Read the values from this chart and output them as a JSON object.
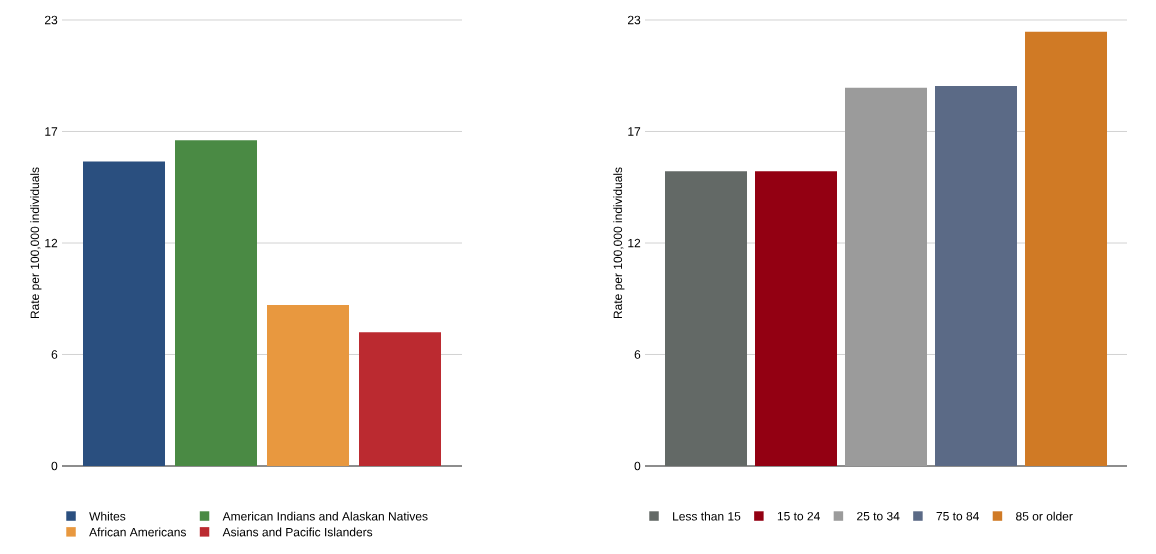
{
  "chart_data": [
    {
      "type": "bar",
      "ylabel": "Rate per 100,000 individuals",
      "categories": [
        null
      ],
      "series": [
        {
          "name": "Whites",
          "color": "#2a4f7f",
          "values": [
            15.7
          ]
        },
        {
          "name": "American Indians and Alaskan Natives",
          "color": "#4a8a44",
          "values": [
            16.8
          ]
        },
        {
          "name": "African Americans",
          "color": "#e8983f",
          "values": [
            8.3
          ]
        },
        {
          "name": "Asians and Pacific Islanders",
          "color": "#bb2a30",
          "values": [
            6.9
          ]
        }
      ],
      "ylim": [
        0,
        23
      ],
      "yticks": [
        0,
        {
          "value": 5.75,
          "label": "6"
        },
        {
          "value": 11.5,
          "label": "12"
        },
        {
          "value": 17.25,
          "label": "17"
        },
        23
      ],
      "grid": "y",
      "legend": "bottom",
      "tick_labels": "y"
    },
    {
      "type": "bar",
      "ylabel": "Rate per 100,000 individuals",
      "categories": [
        null
      ],
      "series": [
        {
          "name": "Less than 15",
          "color": "#636966",
          "values": [
            15.2
          ]
        },
        {
          "name": "15 to 24",
          "color": "#930012",
          "values": [
            15.2
          ]
        },
        {
          "name": "25 to 34",
          "color": "#9b9b9b",
          "values": [
            19.5
          ]
        },
        {
          "name": "75 to 84",
          "color": "#5b6a86",
          "values": [
            19.6
          ]
        },
        {
          "name": "85 or older",
          "color": "#d07a25",
          "values": [
            22.4
          ]
        }
      ],
      "ylim": [
        0,
        23
      ],
      "yticks": [
        0,
        {
          "value": 5.75,
          "label": "6"
        },
        {
          "value": 11.5,
          "label": "12"
        },
        {
          "value": 17.25,
          "label": "17"
        },
        23
      ],
      "grid": "y",
      "legend": "bottom",
      "tick_labels": "y"
    }
  ]
}
